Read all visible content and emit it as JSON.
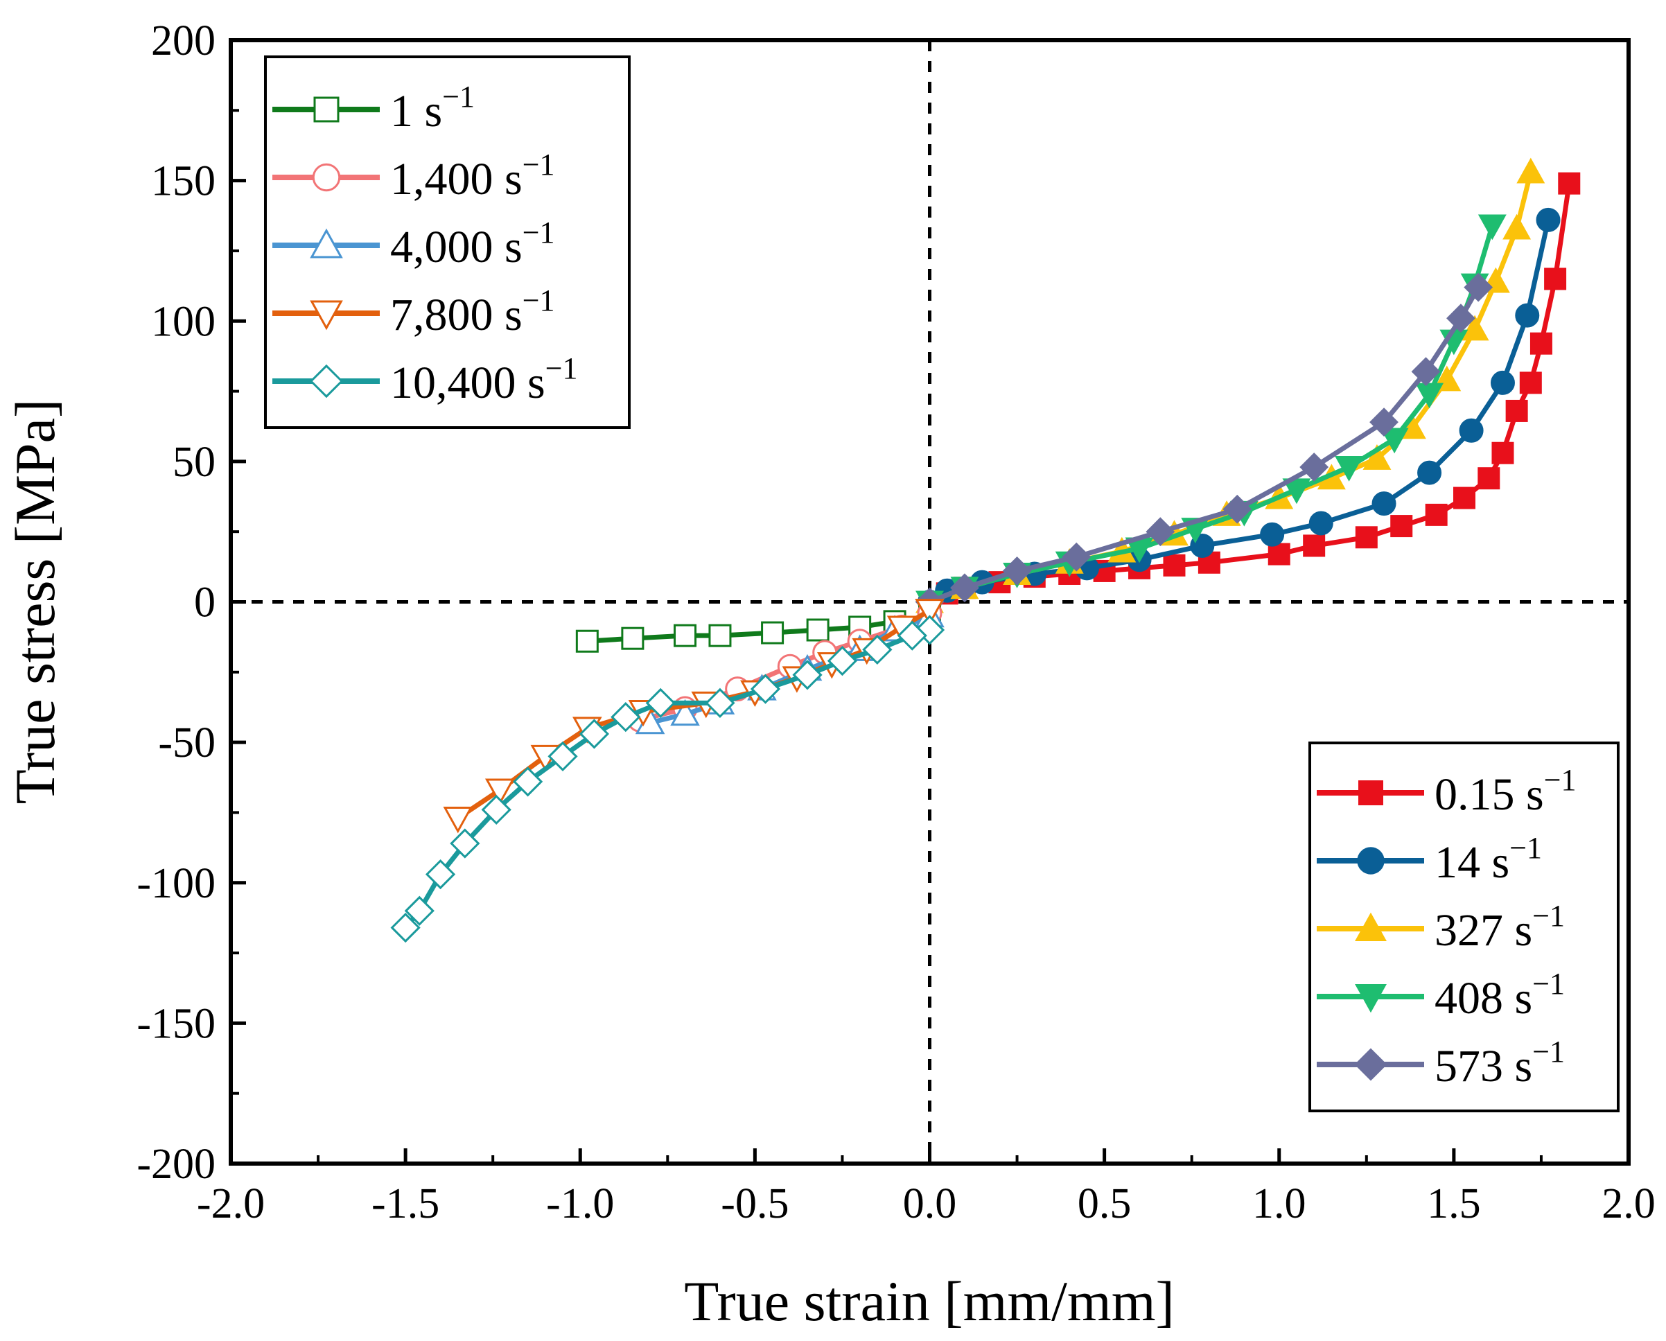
{
  "chart_data": {
    "type": "line",
    "title": "",
    "xlabel": "True strain [mm/mm]",
    "ylabel": "True stress [MPa]",
    "xlim": [
      -2.0,
      2.0
    ],
    "ylim": [
      -200,
      200
    ],
    "xticks": [
      "-2.0",
      "-1.5",
      "-1.0",
      "-0.5",
      "0.0",
      "0.5",
      "1.0",
      "1.5",
      "2.0"
    ],
    "yticks": [
      "200",
      "150",
      "100",
      "50",
      "0",
      "-50",
      "-100",
      "-150",
      "-200"
    ],
    "zero_lines": "dashed",
    "legends": {
      "top-left": [
        {
          "rate": "1",
          "unit": "s",
          "exp": "−1",
          "series": 5
        },
        {
          "rate": "1,400",
          "unit": "s",
          "exp": "−1",
          "series": 6
        },
        {
          "rate": "4,000",
          "unit": "s",
          "exp": "−1",
          "series": 7
        },
        {
          "rate": "7,800",
          "unit": "s",
          "exp": "−1",
          "series": 8
        },
        {
          "rate": "10,400",
          "unit": "s",
          "exp": "−1",
          "series": 9
        }
      ],
      "bottom-right": [
        {
          "rate": "0.15",
          "unit": "s",
          "exp": "−1",
          "series": 0
        },
        {
          "rate": "14",
          "unit": "s",
          "exp": "−1",
          "series": 1
        },
        {
          "rate": "327",
          "unit": "s",
          "exp": "−1",
          "series": 2
        },
        {
          "rate": "408",
          "unit": "s",
          "exp": "−1",
          "series": 3
        },
        {
          "rate": "573",
          "unit": "s",
          "exp": "−1",
          "series": 4
        }
      ]
    },
    "series": [
      {
        "name": "0.15 s−1",
        "color": "#e8101b",
        "marker": "square",
        "filled": true,
        "points": [
          [
            0,
            0
          ],
          [
            0.05,
            3
          ],
          [
            0.1,
            5
          ],
          [
            0.2,
            7
          ],
          [
            0.3,
            9
          ],
          [
            0.4,
            10
          ],
          [
            0.5,
            11
          ],
          [
            0.6,
            12
          ],
          [
            0.7,
            13
          ],
          [
            0.8,
            14
          ],
          [
            1.0,
            17
          ],
          [
            1.1,
            20
          ],
          [
            1.25,
            23
          ],
          [
            1.35,
            27
          ],
          [
            1.45,
            31
          ],
          [
            1.53,
            37
          ],
          [
            1.6,
            44
          ],
          [
            1.64,
            53
          ],
          [
            1.68,
            68
          ],
          [
            1.72,
            78
          ],
          [
            1.75,
            92
          ],
          [
            1.79,
            115
          ],
          [
            1.83,
            149
          ]
        ]
      },
      {
        "name": "14 s−1",
        "color": "#0a5f96",
        "marker": "circle",
        "filled": true,
        "points": [
          [
            0,
            0
          ],
          [
            0.05,
            4
          ],
          [
            0.15,
            7
          ],
          [
            0.3,
            10
          ],
          [
            0.45,
            12
          ],
          [
            0.6,
            15
          ],
          [
            0.78,
            20
          ],
          [
            0.98,
            24
          ],
          [
            1.12,
            28
          ],
          [
            1.3,
            35
          ],
          [
            1.43,
            46
          ],
          [
            1.55,
            61
          ],
          [
            1.64,
            78
          ],
          [
            1.71,
            102
          ],
          [
            1.77,
            136
          ]
        ]
      },
      {
        "name": "327 s−1",
        "color": "#fbc20a",
        "marker": "triangle-up",
        "filled": true,
        "points": [
          [
            0,
            0
          ],
          [
            0.1,
            5
          ],
          [
            0.25,
            10
          ],
          [
            0.4,
            14
          ],
          [
            0.55,
            18
          ],
          [
            0.7,
            24
          ],
          [
            0.85,
            31
          ],
          [
            1.0,
            37
          ],
          [
            1.15,
            44
          ],
          [
            1.28,
            51
          ],
          [
            1.38,
            62
          ],
          [
            1.48,
            79
          ],
          [
            1.56,
            97
          ],
          [
            1.62,
            114
          ],
          [
            1.68,
            133
          ],
          [
            1.72,
            153
          ]
        ]
      },
      {
        "name": "408 s−1",
        "color": "#1ebd70",
        "marker": "triangle-down",
        "filled": true,
        "points": [
          [
            0,
            0
          ],
          [
            0.1,
            5
          ],
          [
            0.25,
            10
          ],
          [
            0.4,
            14
          ],
          [
            0.6,
            19
          ],
          [
            0.76,
            26
          ],
          [
            0.9,
            32
          ],
          [
            1.05,
            40
          ],
          [
            1.2,
            48
          ],
          [
            1.33,
            58
          ],
          [
            1.43,
            74
          ],
          [
            1.5,
            93
          ],
          [
            1.56,
            113
          ],
          [
            1.61,
            134
          ]
        ]
      },
      {
        "name": "573 s−1",
        "color": "#6a6e9c",
        "marker": "diamond",
        "filled": true,
        "points": [
          [
            0,
            0
          ],
          [
            0.1,
            5
          ],
          [
            0.25,
            11
          ],
          [
            0.42,
            16
          ],
          [
            0.66,
            25
          ],
          [
            0.88,
            33
          ],
          [
            1.1,
            48
          ],
          [
            1.3,
            64
          ],
          [
            1.42,
            82
          ],
          [
            1.52,
            101
          ],
          [
            1.57,
            112
          ]
        ]
      },
      {
        "name": "1 s−1",
        "color": "#0f7a1b",
        "marker": "square",
        "filled": false,
        "points": [
          [
            0,
            -5
          ],
          [
            -0.1,
            -7
          ],
          [
            -0.2,
            -9
          ],
          [
            -0.32,
            -10
          ],
          [
            -0.45,
            -11
          ],
          [
            -0.6,
            -12
          ],
          [
            -0.7,
            -12
          ],
          [
            -0.85,
            -13
          ],
          [
            -0.98,
            -14
          ]
        ]
      },
      {
        "name": "1,400 s−1",
        "color": "#f27476",
        "marker": "circle",
        "filled": false,
        "points": [
          [
            0,
            -4
          ],
          [
            -0.08,
            -9
          ],
          [
            -0.2,
            -14
          ],
          [
            -0.3,
            -18
          ],
          [
            -0.4,
            -23
          ],
          [
            -0.55,
            -31
          ],
          [
            -0.7,
            -38
          ],
          [
            -0.83,
            -42
          ]
        ]
      },
      {
        "name": "4,000 s−1",
        "color": "#4a95d2",
        "marker": "triangle-up",
        "filled": false,
        "points": [
          [
            0,
            -5
          ],
          [
            -0.1,
            -10
          ],
          [
            -0.2,
            -17
          ],
          [
            -0.35,
            -24
          ],
          [
            -0.48,
            -31
          ],
          [
            -0.6,
            -36
          ],
          [
            -0.7,
            -40
          ],
          [
            -0.8,
            -43
          ]
        ]
      },
      {
        "name": "7,800 s−1",
        "color": "#e3600d",
        "marker": "triangle-down",
        "filled": false,
        "points": [
          [
            0,
            -3
          ],
          [
            -0.08,
            -9
          ],
          [
            -0.18,
            -17
          ],
          [
            -0.28,
            -22
          ],
          [
            -0.38,
            -27
          ],
          [
            -0.5,
            -32
          ],
          [
            -0.64,
            -36
          ],
          [
            -0.82,
            -39
          ],
          [
            -0.98,
            -45
          ],
          [
            -1.1,
            -55
          ],
          [
            -1.23,
            -67
          ],
          [
            -1.35,
            -77
          ]
        ]
      },
      {
        "name": "10,400 s−1",
        "color": "#1a9a9c",
        "marker": "diamond",
        "filled": false,
        "points": [
          [
            0,
            -10
          ],
          [
            -0.05,
            -12
          ],
          [
            -0.15,
            -17
          ],
          [
            -0.25,
            -21
          ],
          [
            -0.35,
            -26
          ],
          [
            -0.47,
            -31
          ],
          [
            -0.6,
            -36
          ],
          [
            -0.77,
            -36
          ],
          [
            -0.87,
            -41
          ],
          [
            -0.96,
            -47
          ],
          [
            -1.05,
            -55
          ],
          [
            -1.15,
            -64
          ],
          [
            -1.24,
            -74
          ],
          [
            -1.33,
            -86
          ],
          [
            -1.4,
            -97
          ],
          [
            -1.46,
            -110
          ],
          [
            -1.5,
            -116
          ]
        ]
      }
    ]
  }
}
